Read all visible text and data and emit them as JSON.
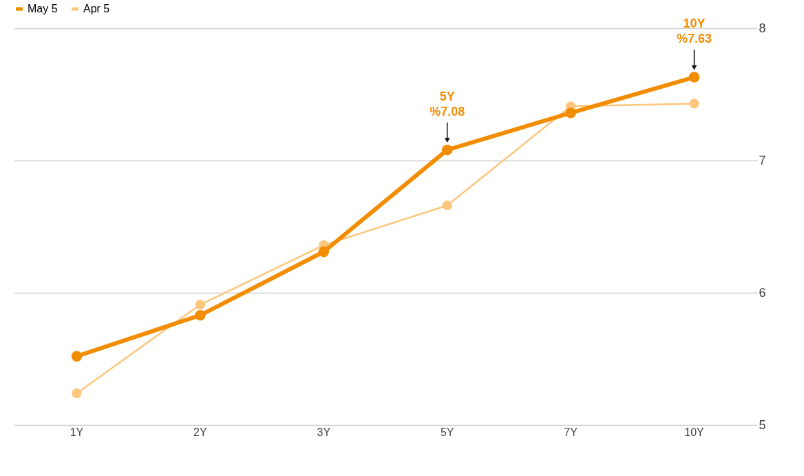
{
  "chart_data": {
    "type": "line",
    "categories": [
      "1Y",
      "2Y",
      "3Y",
      "5Y",
      "7Y",
      "10Y"
    ],
    "series": [
      {
        "name": "May 5",
        "color": "#f28c00",
        "values": [
          5.52,
          5.83,
          6.31,
          7.08,
          7.36,
          7.63
        ]
      },
      {
        "name": "Apr 5",
        "color": "#fcc67c",
        "values": [
          5.24,
          5.91,
          6.36,
          6.66,
          7.41,
          7.43
        ]
      }
    ],
    "ylim": [
      5,
      8
    ],
    "yticks": [
      5,
      6,
      7,
      8
    ],
    "grid": "y",
    "legend": "top left",
    "marker": "circle",
    "line_style": "solid",
    "annotations": [
      {
        "text": "5Y\n%7.08",
        "x": "5Y",
        "y": 7.08
      },
      {
        "text": "10Y\n%7.63",
        "x": "10Y",
        "y": 7.63
      }
    ]
  }
}
